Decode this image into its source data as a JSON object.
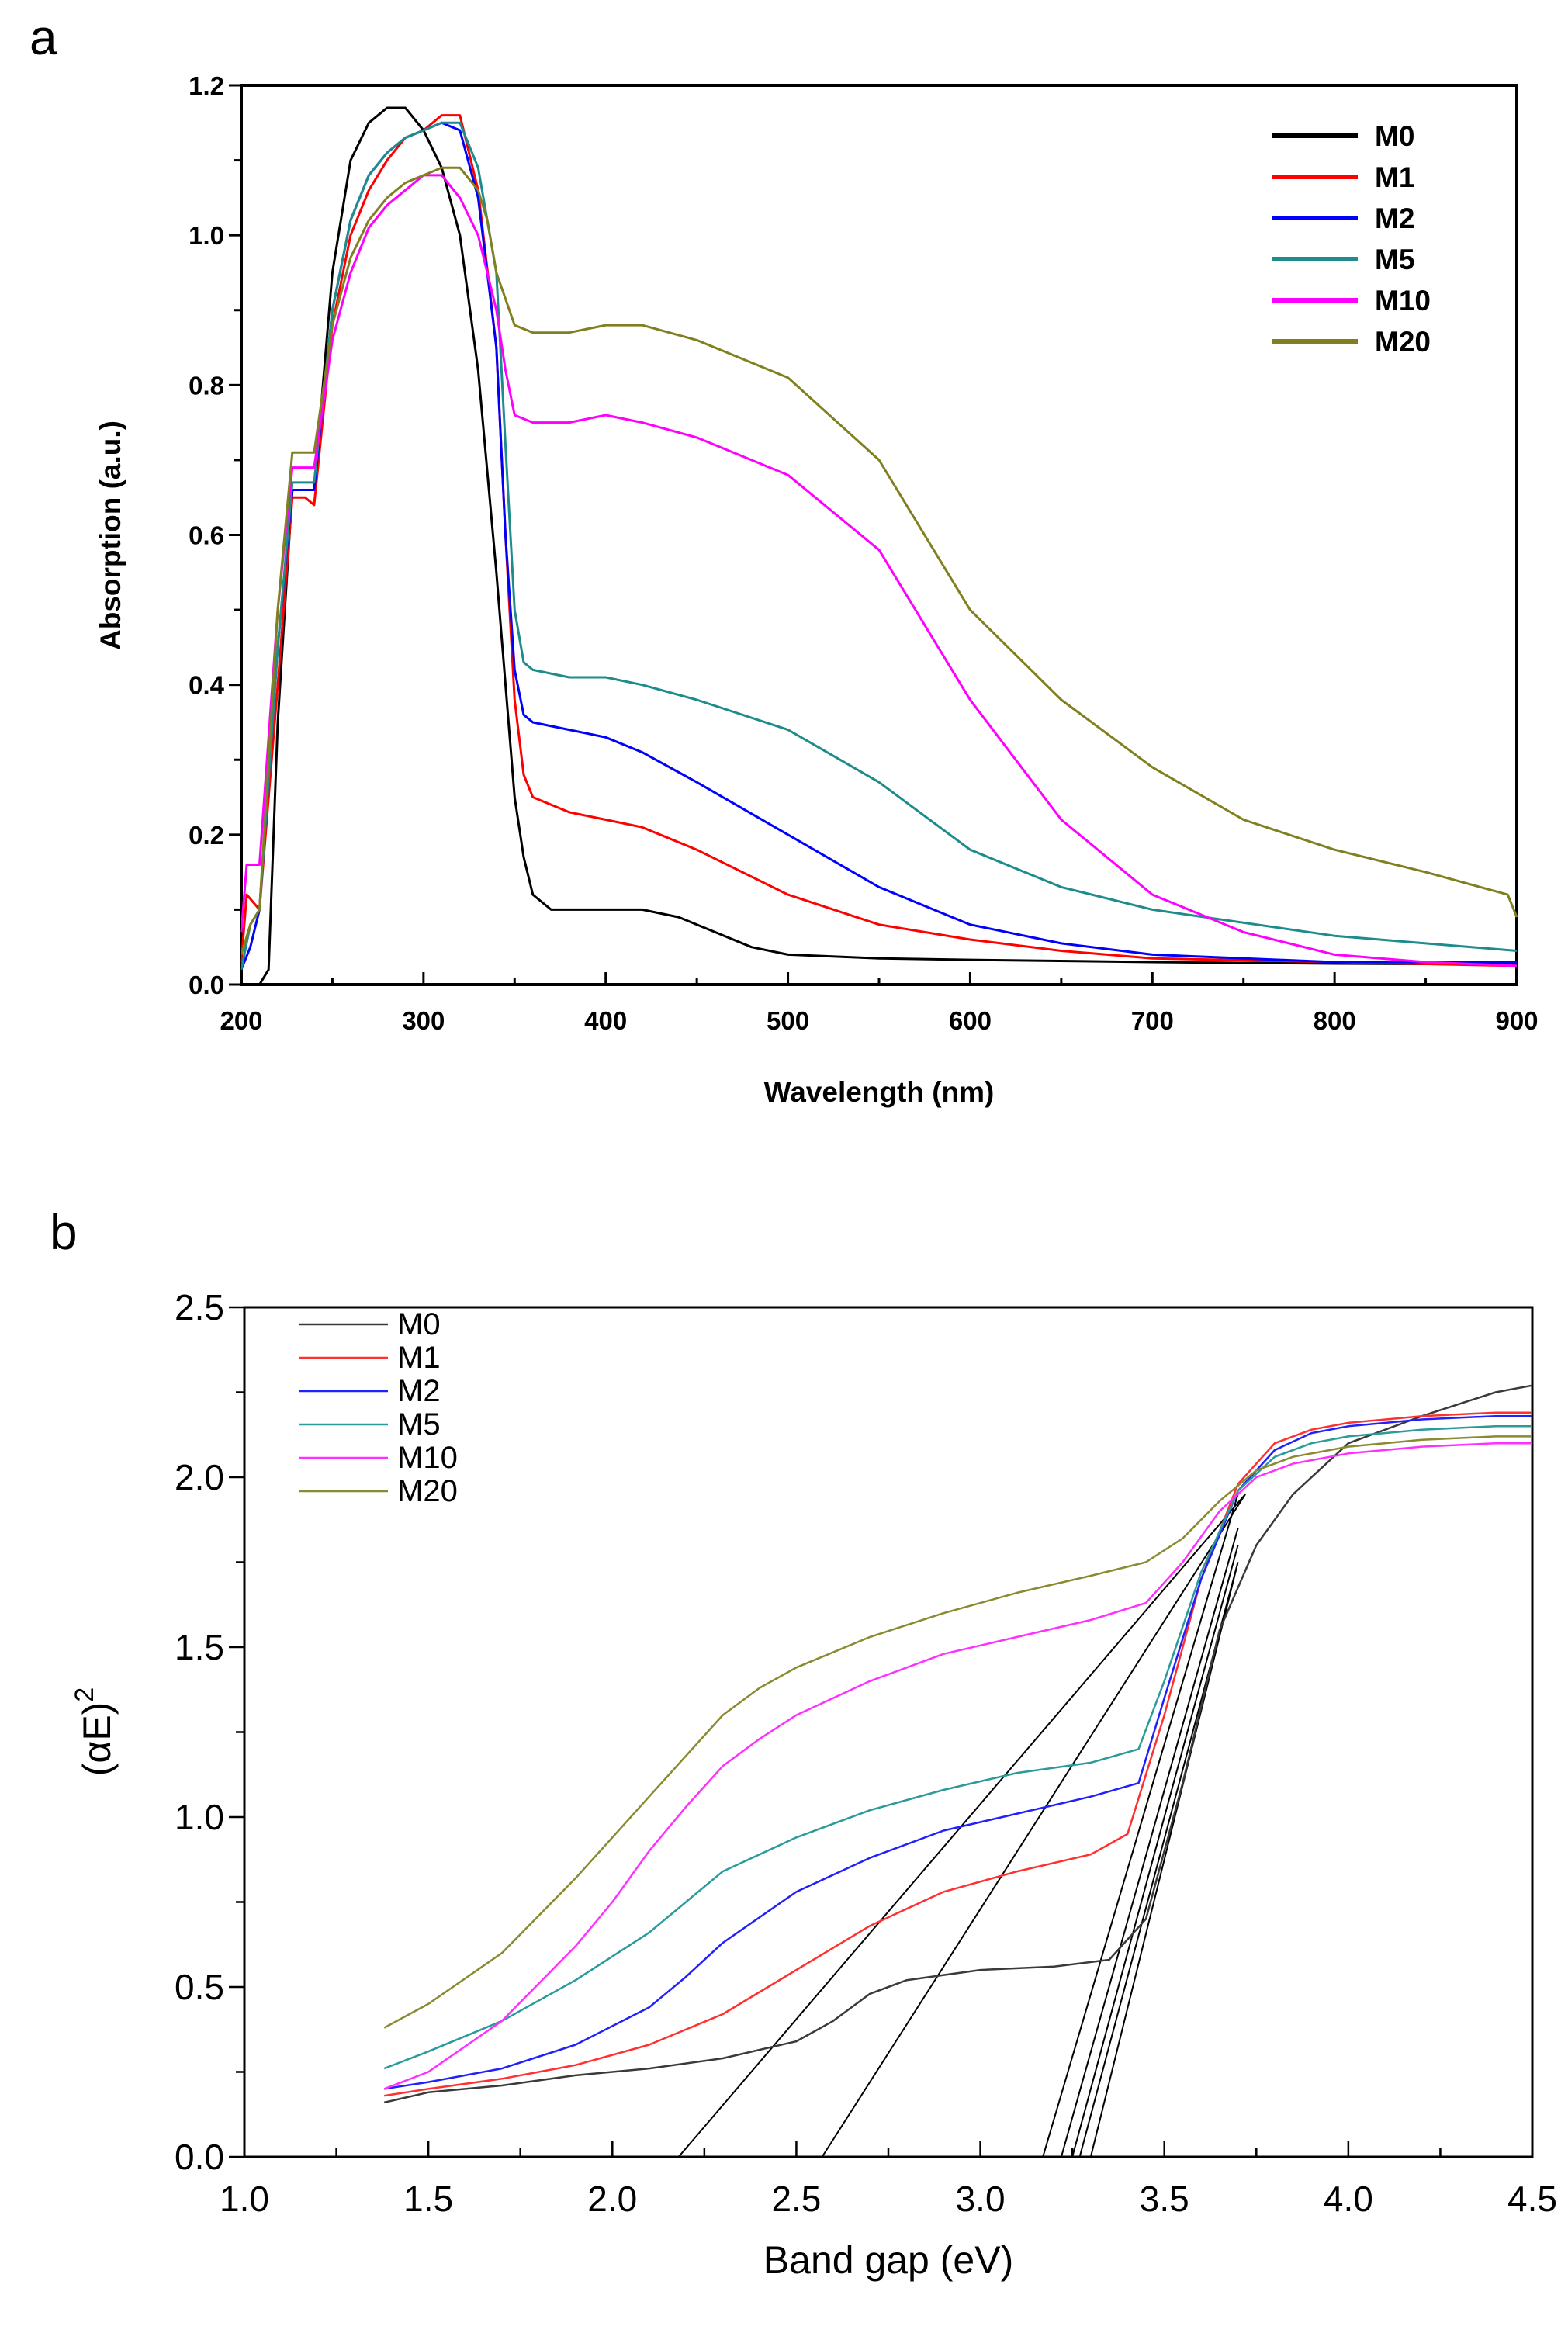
{
  "panel_a": {
    "letter": "a",
    "chart_data": {
      "type": "line",
      "title": "",
      "xlabel": "Wavelength (nm)",
      "ylabel": "Absorption (a.u.)",
      "xlim": [
        200,
        900
      ],
      "ylim": [
        0.0,
        1.2
      ],
      "xticks": [
        "200",
        "300",
        "400",
        "500",
        "600",
        "700",
        "800",
        "900"
      ],
      "yticks": [
        "0.0",
        "0.2",
        "0.4",
        "0.6",
        "0.8",
        "1.0",
        "1.2"
      ],
      "legend_position": "top-right",
      "series": [
        {
          "name": "M0",
          "color": "#000000",
          "x": [
            200,
            210,
            215,
            220,
            228,
            235,
            240,
            250,
            260,
            270,
            280,
            290,
            300,
            310,
            320,
            330,
            340,
            350,
            355,
            360,
            370,
            380,
            400,
            420,
            440,
            460,
            480,
            500,
            550,
            600,
            700,
            800,
            900
          ],
          "y": [
            0.0,
            0.0,
            0.02,
            0.35,
            0.66,
            0.66,
            0.66,
            0.95,
            1.1,
            1.15,
            1.17,
            1.17,
            1.14,
            1.09,
            1.0,
            0.82,
            0.55,
            0.25,
            0.17,
            0.12,
            0.1,
            0.1,
            0.1,
            0.1,
            0.09,
            0.07,
            0.05,
            0.04,
            0.035,
            0.033,
            0.03,
            0.028,
            0.027
          ]
        },
        {
          "name": "M1",
          "color": "#ff0000",
          "x": [
            200,
            203,
            210,
            220,
            228,
            235,
            240,
            250,
            260,
            270,
            280,
            290,
            300,
            310,
            320,
            330,
            340,
            345,
            350,
            355,
            360,
            380,
            400,
            420,
            450,
            500,
            550,
            600,
            650,
            700,
            800,
            900
          ],
          "y": [
            0.03,
            0.12,
            0.1,
            0.4,
            0.65,
            0.65,
            0.64,
            0.88,
            1.0,
            1.06,
            1.1,
            1.13,
            1.14,
            1.16,
            1.16,
            1.06,
            0.85,
            0.6,
            0.38,
            0.28,
            0.25,
            0.23,
            0.22,
            0.21,
            0.18,
            0.12,
            0.08,
            0.06,
            0.045,
            0.035,
            0.03,
            0.025
          ]
        },
        {
          "name": "M2",
          "color": "#0000ff",
          "x": [
            200,
            205,
            210,
            220,
            228,
            235,
            240,
            250,
            260,
            270,
            280,
            290,
            300,
            310,
            320,
            330,
            340,
            345,
            350,
            355,
            360,
            380,
            400,
            420,
            450,
            500,
            550,
            600,
            650,
            700,
            800,
            900
          ],
          "y": [
            0.02,
            0.05,
            0.1,
            0.45,
            0.66,
            0.66,
            0.66,
            0.9,
            1.02,
            1.08,
            1.11,
            1.13,
            1.14,
            1.15,
            1.14,
            1.05,
            0.85,
            0.6,
            0.42,
            0.36,
            0.35,
            0.34,
            0.33,
            0.31,
            0.27,
            0.2,
            0.13,
            0.08,
            0.055,
            0.04,
            0.03,
            0.03
          ]
        },
        {
          "name": "M5",
          "color": "#1e8c8c",
          "x": [
            200,
            205,
            210,
            220,
            228,
            235,
            240,
            250,
            260,
            270,
            280,
            290,
            300,
            310,
            320,
            330,
            340,
            345,
            350,
            355,
            360,
            380,
            400,
            420,
            450,
            500,
            550,
            600,
            650,
            700,
            800,
            900
          ],
          "y": [
            0.02,
            0.08,
            0.1,
            0.45,
            0.67,
            0.67,
            0.67,
            0.9,
            1.02,
            1.08,
            1.11,
            1.13,
            1.14,
            1.15,
            1.15,
            1.09,
            0.95,
            0.72,
            0.5,
            0.43,
            0.42,
            0.41,
            0.41,
            0.4,
            0.38,
            0.34,
            0.27,
            0.18,
            0.13,
            0.1,
            0.065,
            0.045
          ]
        },
        {
          "name": "M10",
          "color": "#ff00ff",
          "x": [
            200,
            203,
            210,
            220,
            228,
            235,
            240,
            250,
            260,
            270,
            280,
            290,
            300,
            310,
            320,
            330,
            340,
            345,
            350,
            360,
            380,
            400,
            420,
            450,
            500,
            550,
            600,
            650,
            700,
            750,
            800,
            850,
            900
          ],
          "y": [
            0.07,
            0.16,
            0.16,
            0.5,
            0.69,
            0.69,
            0.69,
            0.86,
            0.95,
            1.01,
            1.04,
            1.06,
            1.08,
            1.08,
            1.05,
            1.0,
            0.9,
            0.82,
            0.76,
            0.75,
            0.75,
            0.76,
            0.75,
            0.73,
            0.68,
            0.58,
            0.38,
            0.22,
            0.12,
            0.07,
            0.04,
            0.03,
            0.025
          ]
        },
        {
          "name": "M20",
          "color": "#808020",
          "x": [
            200,
            205,
            210,
            220,
            228,
            235,
            240,
            250,
            260,
            270,
            280,
            290,
            300,
            310,
            320,
            330,
            335,
            340,
            350,
            360,
            380,
            400,
            420,
            450,
            500,
            550,
            600,
            650,
            700,
            750,
            800,
            850,
            895,
            900
          ],
          "y": [
            0.04,
            0.08,
            0.1,
            0.5,
            0.71,
            0.71,
            0.71,
            0.88,
            0.97,
            1.02,
            1.05,
            1.07,
            1.08,
            1.09,
            1.09,
            1.06,
            1.02,
            0.95,
            0.88,
            0.87,
            0.87,
            0.88,
            0.88,
            0.86,
            0.81,
            0.7,
            0.5,
            0.38,
            0.29,
            0.22,
            0.18,
            0.15,
            0.12,
            0.09
          ]
        }
      ]
    }
  },
  "panel_b": {
    "letter": "b",
    "chart_data": {
      "type": "line",
      "title": "",
      "xlabel": "Band gap (eV)",
      "ylabel": "(αE)",
      "ylabel_superscript": "2",
      "xlim": [
        1.0,
        4.5
      ],
      "ylim": [
        0.0,
        2.5
      ],
      "xticks": [
        "1.0",
        "1.5",
        "2.0",
        "2.5",
        "3.0",
        "3.5",
        "4.0",
        "4.5"
      ],
      "yticks": [
        "0.0",
        "0.5",
        "1.0",
        "1.5",
        "2.0",
        "2.5"
      ],
      "legend_position": "top-left",
      "series": [
        {
          "name": "M0",
          "color": "#3a3a3a",
          "x": [
            1.38,
            1.5,
            1.7,
            1.9,
            2.1,
            2.3,
            2.5,
            2.6,
            2.7,
            2.8,
            3.0,
            3.2,
            3.35,
            3.45,
            3.55,
            3.65,
            3.75,
            3.85,
            4.0,
            4.2,
            4.4,
            4.5
          ],
          "y": [
            0.16,
            0.19,
            0.21,
            0.24,
            0.26,
            0.29,
            0.34,
            0.4,
            0.48,
            0.52,
            0.55,
            0.56,
            0.58,
            0.7,
            1.1,
            1.55,
            1.8,
            1.95,
            2.1,
            2.18,
            2.25,
            2.27
          ]
        },
        {
          "name": "M1",
          "color": "#ff3030",
          "x": [
            1.38,
            1.5,
            1.7,
            1.9,
            2.1,
            2.3,
            2.5,
            2.7,
            2.9,
            3.1,
            3.3,
            3.4,
            3.5,
            3.6,
            3.7,
            3.8,
            3.9,
            4.0,
            4.2,
            4.4,
            4.5
          ],
          "y": [
            0.18,
            0.2,
            0.23,
            0.27,
            0.33,
            0.42,
            0.55,
            0.68,
            0.78,
            0.84,
            0.89,
            0.95,
            1.3,
            1.7,
            1.98,
            2.1,
            2.14,
            2.16,
            2.18,
            2.19,
            2.19
          ]
        },
        {
          "name": "M2",
          "color": "#2020ff",
          "x": [
            1.38,
            1.5,
            1.7,
            1.9,
            2.1,
            2.2,
            2.3,
            2.5,
            2.7,
            2.9,
            3.1,
            3.3,
            3.43,
            3.5,
            3.6,
            3.7,
            3.8,
            3.9,
            4.0,
            4.2,
            4.4,
            4.5
          ],
          "y": [
            0.2,
            0.22,
            0.26,
            0.33,
            0.44,
            0.53,
            0.63,
            0.78,
            0.88,
            0.96,
            1.01,
            1.06,
            1.1,
            1.35,
            1.7,
            1.96,
            2.08,
            2.13,
            2.15,
            2.17,
            2.18,
            2.18
          ]
        },
        {
          "name": "M5",
          "color": "#2a9a9a",
          "x": [
            1.38,
            1.5,
            1.7,
            1.9,
            2.1,
            2.2,
            2.3,
            2.5,
            2.7,
            2.9,
            3.1,
            3.3,
            3.43,
            3.5,
            3.6,
            3.7,
            3.8,
            3.9,
            4.0,
            4.2,
            4.4,
            4.5
          ],
          "y": [
            0.26,
            0.31,
            0.4,
            0.52,
            0.66,
            0.75,
            0.84,
            0.94,
            1.02,
            1.08,
            1.13,
            1.16,
            1.2,
            1.4,
            1.72,
            1.96,
            2.06,
            2.1,
            2.12,
            2.14,
            2.15,
            2.15
          ]
        },
        {
          "name": "M10",
          "color": "#ff30ff",
          "x": [
            1.38,
            1.5,
            1.7,
            1.9,
            2.0,
            2.1,
            2.2,
            2.3,
            2.4,
            2.5,
            2.7,
            2.9,
            3.1,
            3.3,
            3.45,
            3.55,
            3.65,
            3.75,
            3.85,
            4.0,
            4.2,
            4.4,
            4.5
          ],
          "y": [
            0.2,
            0.25,
            0.4,
            0.62,
            0.75,
            0.9,
            1.03,
            1.15,
            1.23,
            1.3,
            1.4,
            1.48,
            1.53,
            1.58,
            1.63,
            1.75,
            1.9,
            2.0,
            2.04,
            2.07,
            2.09,
            2.1,
            2.1
          ]
        },
        {
          "name": "M20",
          "color": "#8a8a30",
          "x": [
            1.38,
            1.5,
            1.7,
            1.9,
            2.0,
            2.1,
            2.2,
            2.3,
            2.4,
            2.5,
            2.7,
            2.9,
            3.1,
            3.3,
            3.45,
            3.55,
            3.65,
            3.75,
            3.85,
            4.0,
            4.2,
            4.4,
            4.5
          ],
          "y": [
            0.38,
            0.45,
            0.6,
            0.82,
            0.94,
            1.06,
            1.18,
            1.3,
            1.38,
            1.44,
            1.53,
            1.6,
            1.66,
            1.71,
            1.75,
            1.82,
            1.93,
            2.02,
            2.06,
            2.09,
            2.11,
            2.12,
            2.12
          ]
        }
      ],
      "tangent_lines": [
        {
          "x": [
            2.18,
            3.72
          ],
          "y": [
            0.0,
            1.95
          ]
        },
        {
          "x": [
            2.57,
            3.72
          ],
          "y": [
            0.0,
            1.95
          ]
        },
        {
          "x": [
            3.17,
            3.7
          ],
          "y": [
            0.0,
            1.95
          ]
        },
        {
          "x": [
            3.22,
            3.7
          ],
          "y": [
            0.0,
            1.85
          ]
        },
        {
          "x": [
            3.25,
            3.7
          ],
          "y": [
            0.0,
            1.8
          ]
        },
        {
          "x": [
            3.27,
            3.7
          ],
          "y": [
            0.0,
            1.75
          ]
        },
        {
          "x": [
            3.3,
            3.7
          ],
          "y": [
            0.0,
            1.75
          ]
        }
      ]
    }
  }
}
